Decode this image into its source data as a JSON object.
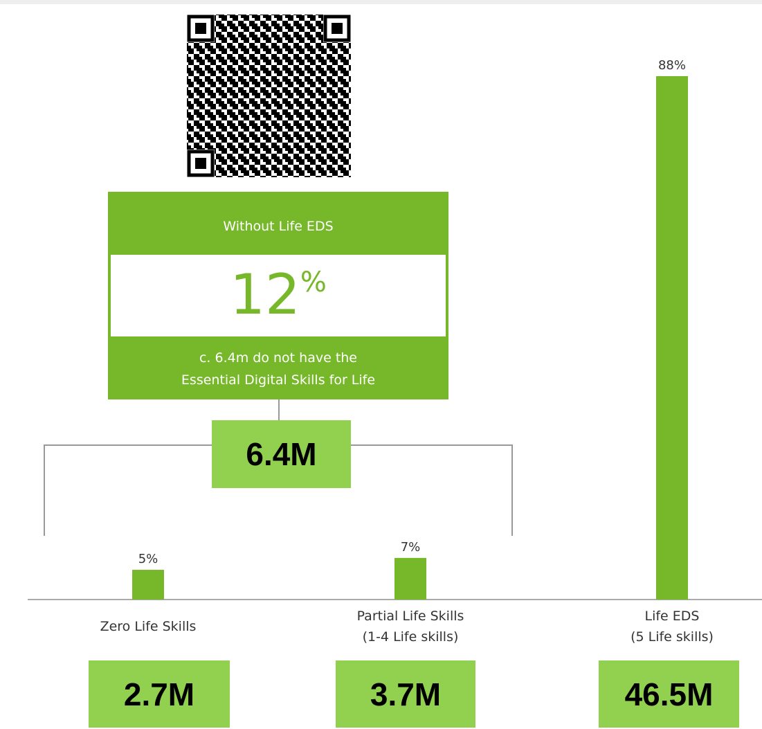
{
  "chart_data": {
    "type": "bar",
    "categories": [
      "Zero Life Skills",
      "Partial Life Skills\n(1-4 Life skills)",
      "Life EDS\n(5 Life skills)"
    ],
    "values": [
      5,
      7,
      88
    ],
    "value_labels": [
      "5%",
      "7%",
      "88%"
    ],
    "color": "#76b82a",
    "totals": [
      "2.7M",
      "3.7M",
      "46.5M"
    ]
  },
  "callout": {
    "title": "Without Life EDS",
    "value": "12",
    "unit": "%",
    "note": "c. 6.4m do not have the\nEssential Digital Skills for Life",
    "total": "6.4M"
  }
}
